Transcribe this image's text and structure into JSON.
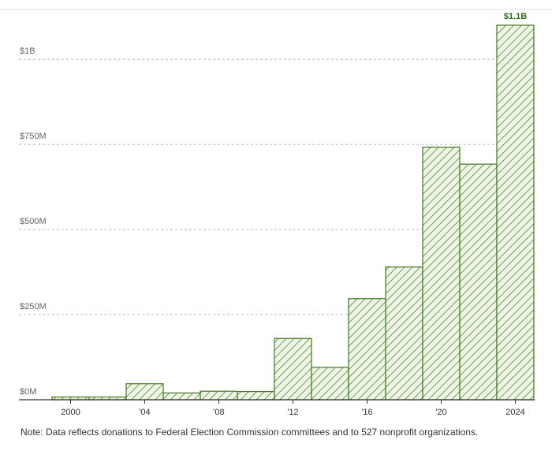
{
  "chart_data": {
    "type": "bar",
    "x": [
      2000,
      2002,
      2004,
      2006,
      2008,
      2010,
      2012,
      2014,
      2016,
      2018,
      2020,
      2022,
      2024
    ],
    "values": [
      8,
      8,
      47,
      20,
      25,
      24,
      180,
      95,
      297,
      390,
      742,
      692,
      1100
    ],
    "unit": "millions of dollars",
    "ylim": [
      0,
      1100
    ],
    "y_ticks": [
      {
        "value": 0,
        "label": "$0M"
      },
      {
        "value": 250,
        "label": "$250M"
      },
      {
        "value": 500,
        "label": "$500M"
      },
      {
        "value": 750,
        "label": "$750M"
      },
      {
        "value": 1000,
        "label": "$1B"
      }
    ],
    "x_ticks": [
      {
        "value": 2000,
        "label": "2000"
      },
      {
        "value": 2004,
        "label": "'04"
      },
      {
        "value": 2008,
        "label": "'08"
      },
      {
        "value": 2012,
        "label": "'12"
      },
      {
        "value": 2016,
        "label": "'16"
      },
      {
        "value": 2020,
        "label": "'20"
      },
      {
        "value": 2024,
        "label": "2024"
      }
    ],
    "annotation": {
      "x": 2024,
      "label": "$1.1B"
    },
    "grid": true,
    "colors": {
      "bar_stroke": "#3f7a1f",
      "bar_fill": "#eef4e6",
      "hatch": "#3f7a1f",
      "annotation": "#2e6b12"
    }
  },
  "footer": {
    "note": "Note: Data reflects donations to Federal Election Commission committees and to 527 nonprofit organizations."
  }
}
